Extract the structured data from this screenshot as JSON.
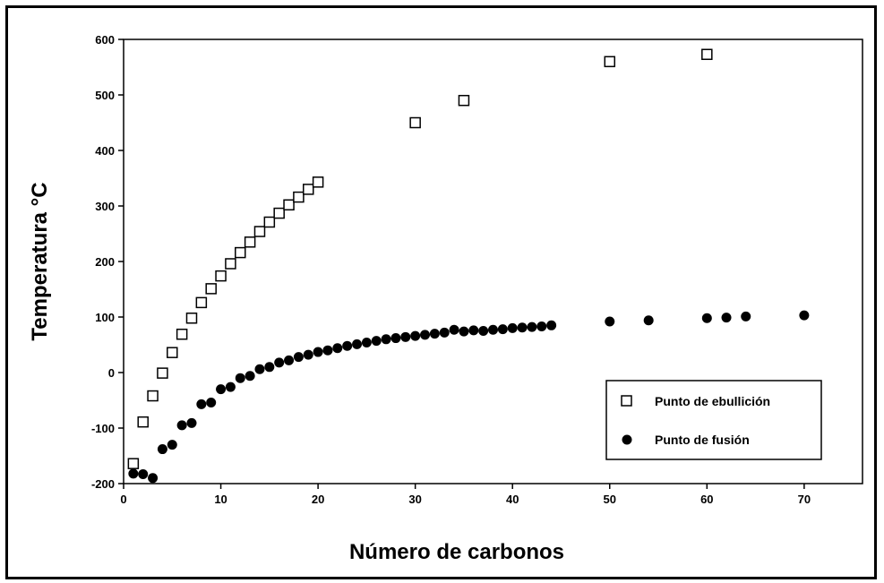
{
  "chart_data": {
    "type": "scatter",
    "title": "",
    "xlabel": "Número de carbonos",
    "ylabel": "Temperatura °C",
    "xlim": [
      0,
      76
    ],
    "ylim": [
      -200,
      600
    ],
    "xticks": [
      0,
      10,
      20,
      30,
      40,
      50,
      60,
      70
    ],
    "yticks": [
      -200,
      -100,
      0,
      100,
      200,
      300,
      400,
      500,
      600
    ],
    "grid": false,
    "legend_position": "bottom-right",
    "series": [
      {
        "name": "Punto de ebullición",
        "marker": "open-square",
        "color": "#000000",
        "x": [
          1,
          2,
          3,
          4,
          5,
          6,
          7,
          8,
          9,
          10,
          11,
          12,
          13,
          14,
          15,
          16,
          17,
          18,
          19,
          20,
          30,
          35,
          50,
          60
        ],
        "y": [
          -164,
          -89,
          -42,
          -1,
          36,
          69,
          98,
          126,
          151,
          174,
          196,
          216,
          235,
          254,
          271,
          287,
          302,
          316,
          330,
          343,
          450,
          490,
          560,
          573
        ]
      },
      {
        "name": "Punto de fusión",
        "marker": "filled-circle",
        "color": "#000000",
        "x": [
          1,
          2,
          3,
          4,
          5,
          6,
          7,
          8,
          9,
          10,
          11,
          12,
          13,
          14,
          15,
          16,
          17,
          18,
          19,
          20,
          21,
          22,
          23,
          24,
          25,
          26,
          27,
          28,
          29,
          30,
          31,
          32,
          33,
          34,
          35,
          36,
          37,
          38,
          39,
          40,
          41,
          42,
          43,
          44,
          50,
          54,
          60,
          62,
          64,
          70
        ],
        "y": [
          -182,
          -183,
          -190,
          -138,
          -130,
          -95,
          -91,
          -57,
          -54,
          -30,
          -26,
          -10,
          -6,
          6,
          10,
          18,
          22,
          28,
          32,
          37,
          40,
          44,
          48,
          51,
          54,
          57,
          60,
          62,
          64,
          66,
          68,
          70,
          72,
          77,
          74,
          76,
          75,
          77,
          78,
          80,
          81,
          82,
          83,
          85,
          92,
          94,
          98,
          99,
          101,
          103
        ]
      }
    ]
  }
}
